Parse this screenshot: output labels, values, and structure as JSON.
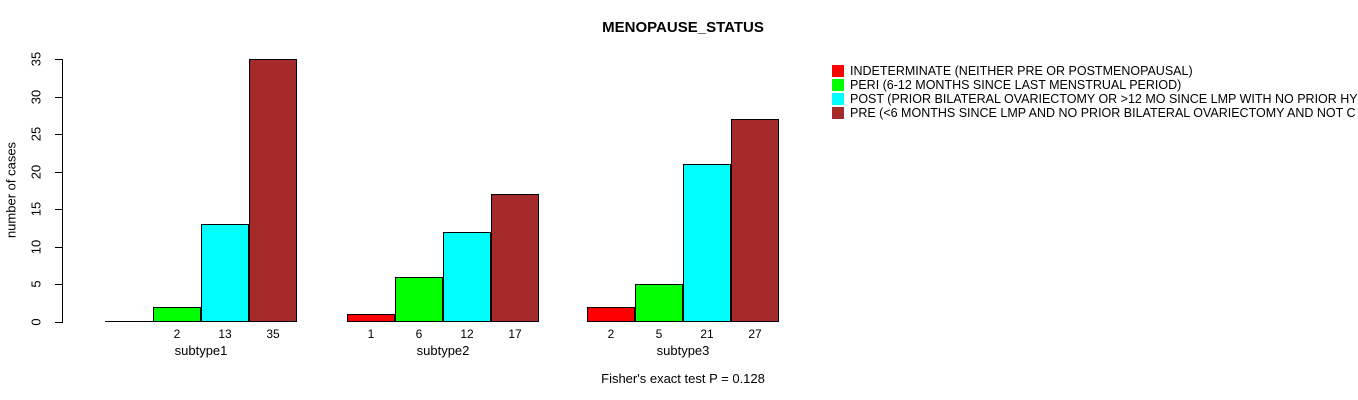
{
  "chart_data": {
    "type": "bar",
    "title": "MENOPAUSE_STATUS",
    "ylabel": "number of cases",
    "xlabel": "",
    "ylim": [
      0,
      35
    ],
    "yticks": [
      0,
      5,
      10,
      15,
      20,
      25,
      30,
      35
    ],
    "grid": false,
    "legend_position": "top-right",
    "categories": [
      "subtype1",
      "subtype2",
      "subtype3"
    ],
    "series": [
      {
        "name": "INDETERMINATE (NEITHER PRE OR POSTMENOPAUSAL)",
        "color": "#ff0000",
        "values": [
          0,
          1,
          2
        ]
      },
      {
        "name": "PERI (6-12 MONTHS SINCE LAST MENSTRUAL PERIOD)",
        "color": "#00ff00",
        "values": [
          2,
          6,
          5
        ]
      },
      {
        "name": "POST (PRIOR BILATERAL OVARIECTOMY OR >12 MO SINCE LMP WITH NO PRIOR HY",
        "color": "#00ffff",
        "values": [
          13,
          12,
          21
        ]
      },
      {
        "name": "PRE (<6 MONTHS SINCE LMP AND NO PRIOR BILATERAL OVARIECTOMY AND NOT C",
        "color": "#a52a2a",
        "values": [
          35,
          17,
          27
        ]
      }
    ],
    "bar_value_labels": [
      [
        "",
        "2",
        "13",
        "35"
      ],
      [
        "1",
        "6",
        "12",
        "17"
      ],
      [
        "2",
        "5",
        "21",
        "27"
      ]
    ],
    "annotation": "Fisher's exact test P = 0.128"
  }
}
